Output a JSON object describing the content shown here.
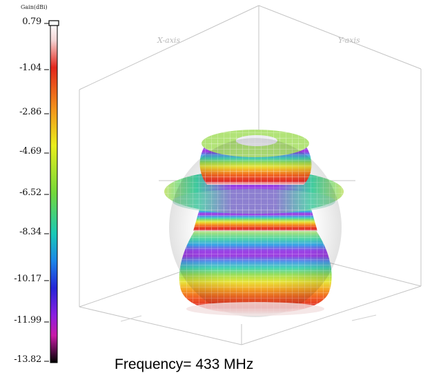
{
  "color_scale": {
    "title": "Gain(dBi)",
    "ticks": [
      "0.79",
      "-1.04",
      "-2.86",
      "-4.69",
      "-6.52",
      "-8.34",
      "-10.17",
      "-11.99",
      "-13.82"
    ]
  },
  "axes": {
    "x_label": "X-axis",
    "y_label": "Y-axis"
  },
  "caption": "Frequency= 433 MHz"
}
